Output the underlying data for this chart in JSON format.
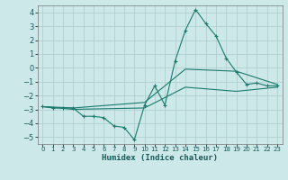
{
  "xlabel": "Humidex (Indice chaleur)",
  "background_color": "#cce8e8",
  "grid_color": "#b0d0d0",
  "line_color": "#1a7a6e",
  "xlim": [
    -0.5,
    23.5
  ],
  "ylim": [
    -5.5,
    4.5
  ],
  "yticks": [
    -5,
    -4,
    -3,
    -2,
    -1,
    0,
    1,
    2,
    3,
    4
  ],
  "xticks": [
    0,
    1,
    2,
    3,
    4,
    5,
    6,
    7,
    8,
    9,
    10,
    11,
    12,
    13,
    14,
    15,
    16,
    17,
    18,
    19,
    20,
    21,
    22,
    23
  ],
  "series": [
    {
      "x": [
        0,
        1,
        2,
        3,
        4,
        5,
        6,
        7,
        8,
        9,
        10,
        11,
        12,
        13,
        14,
        15,
        16,
        17,
        18,
        19,
        20,
        21,
        22,
        23
      ],
      "y": [
        -2.8,
        -2.9,
        -2.9,
        -2.9,
        -3.5,
        -3.5,
        -3.6,
        -4.2,
        -4.3,
        -5.2,
        -2.7,
        -1.3,
        -2.7,
        0.5,
        2.7,
        4.2,
        3.2,
        2.3,
        0.7,
        -0.3,
        -1.2,
        -1.1,
        -1.3,
        -1.3
      ],
      "marker": true
    },
    {
      "x": [
        0,
        3,
        10,
        14,
        19,
        23
      ],
      "y": [
        -2.8,
        -2.9,
        -2.5,
        -0.1,
        -0.25,
        -1.2
      ],
      "marker": false
    },
    {
      "x": [
        0,
        3,
        10,
        14,
        19,
        23
      ],
      "y": [
        -2.8,
        -3.0,
        -2.9,
        -1.4,
        -1.7,
        -1.4
      ],
      "marker": false
    }
  ]
}
